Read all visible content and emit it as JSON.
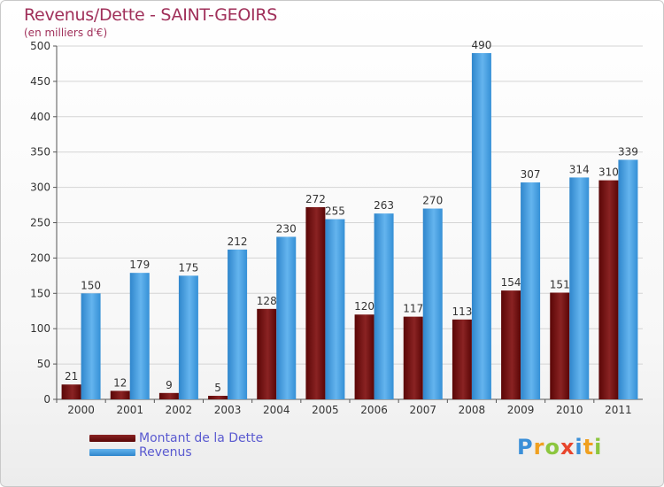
{
  "title": "Revenus/Dette - SAINT-GEOIRS",
  "subtitle": "(en milliers d'€)",
  "colors": {
    "debt": "#6b0b0b",
    "revenue": "#4a9fe0",
    "title": "#a0305a"
  },
  "legend": {
    "debt_label": "Montant de la Dette",
    "revenue_label": "Revenus"
  },
  "logo": {
    "text": "Proxiti",
    "letters": [
      "P",
      "r",
      "o",
      "x",
      "i",
      "t",
      "i"
    ]
  },
  "chart_data": {
    "type": "bar",
    "title": "Revenus/Dette - SAINT-GEOIRS",
    "ylabel": "(en milliers d'€)",
    "xlabel": "",
    "ylim": [
      0,
      500
    ],
    "yticks": [
      0,
      50,
      100,
      150,
      200,
      250,
      300,
      350,
      400,
      450,
      500
    ],
    "grid": true,
    "categories": [
      "2000",
      "2001",
      "2002",
      "2003",
      "2004",
      "2005",
      "2006",
      "2007",
      "2008",
      "2009",
      "2010",
      "2011"
    ],
    "series": [
      {
        "name": "Montant de la Dette",
        "values": [
          21,
          12,
          9,
          5,
          128,
          272,
          120,
          117,
          113,
          154,
          151,
          310
        ]
      },
      {
        "name": "Revenus",
        "values": [
          150,
          179,
          175,
          212,
          230,
          255,
          263,
          270,
          490,
          307,
          314,
          339
        ]
      }
    ]
  }
}
